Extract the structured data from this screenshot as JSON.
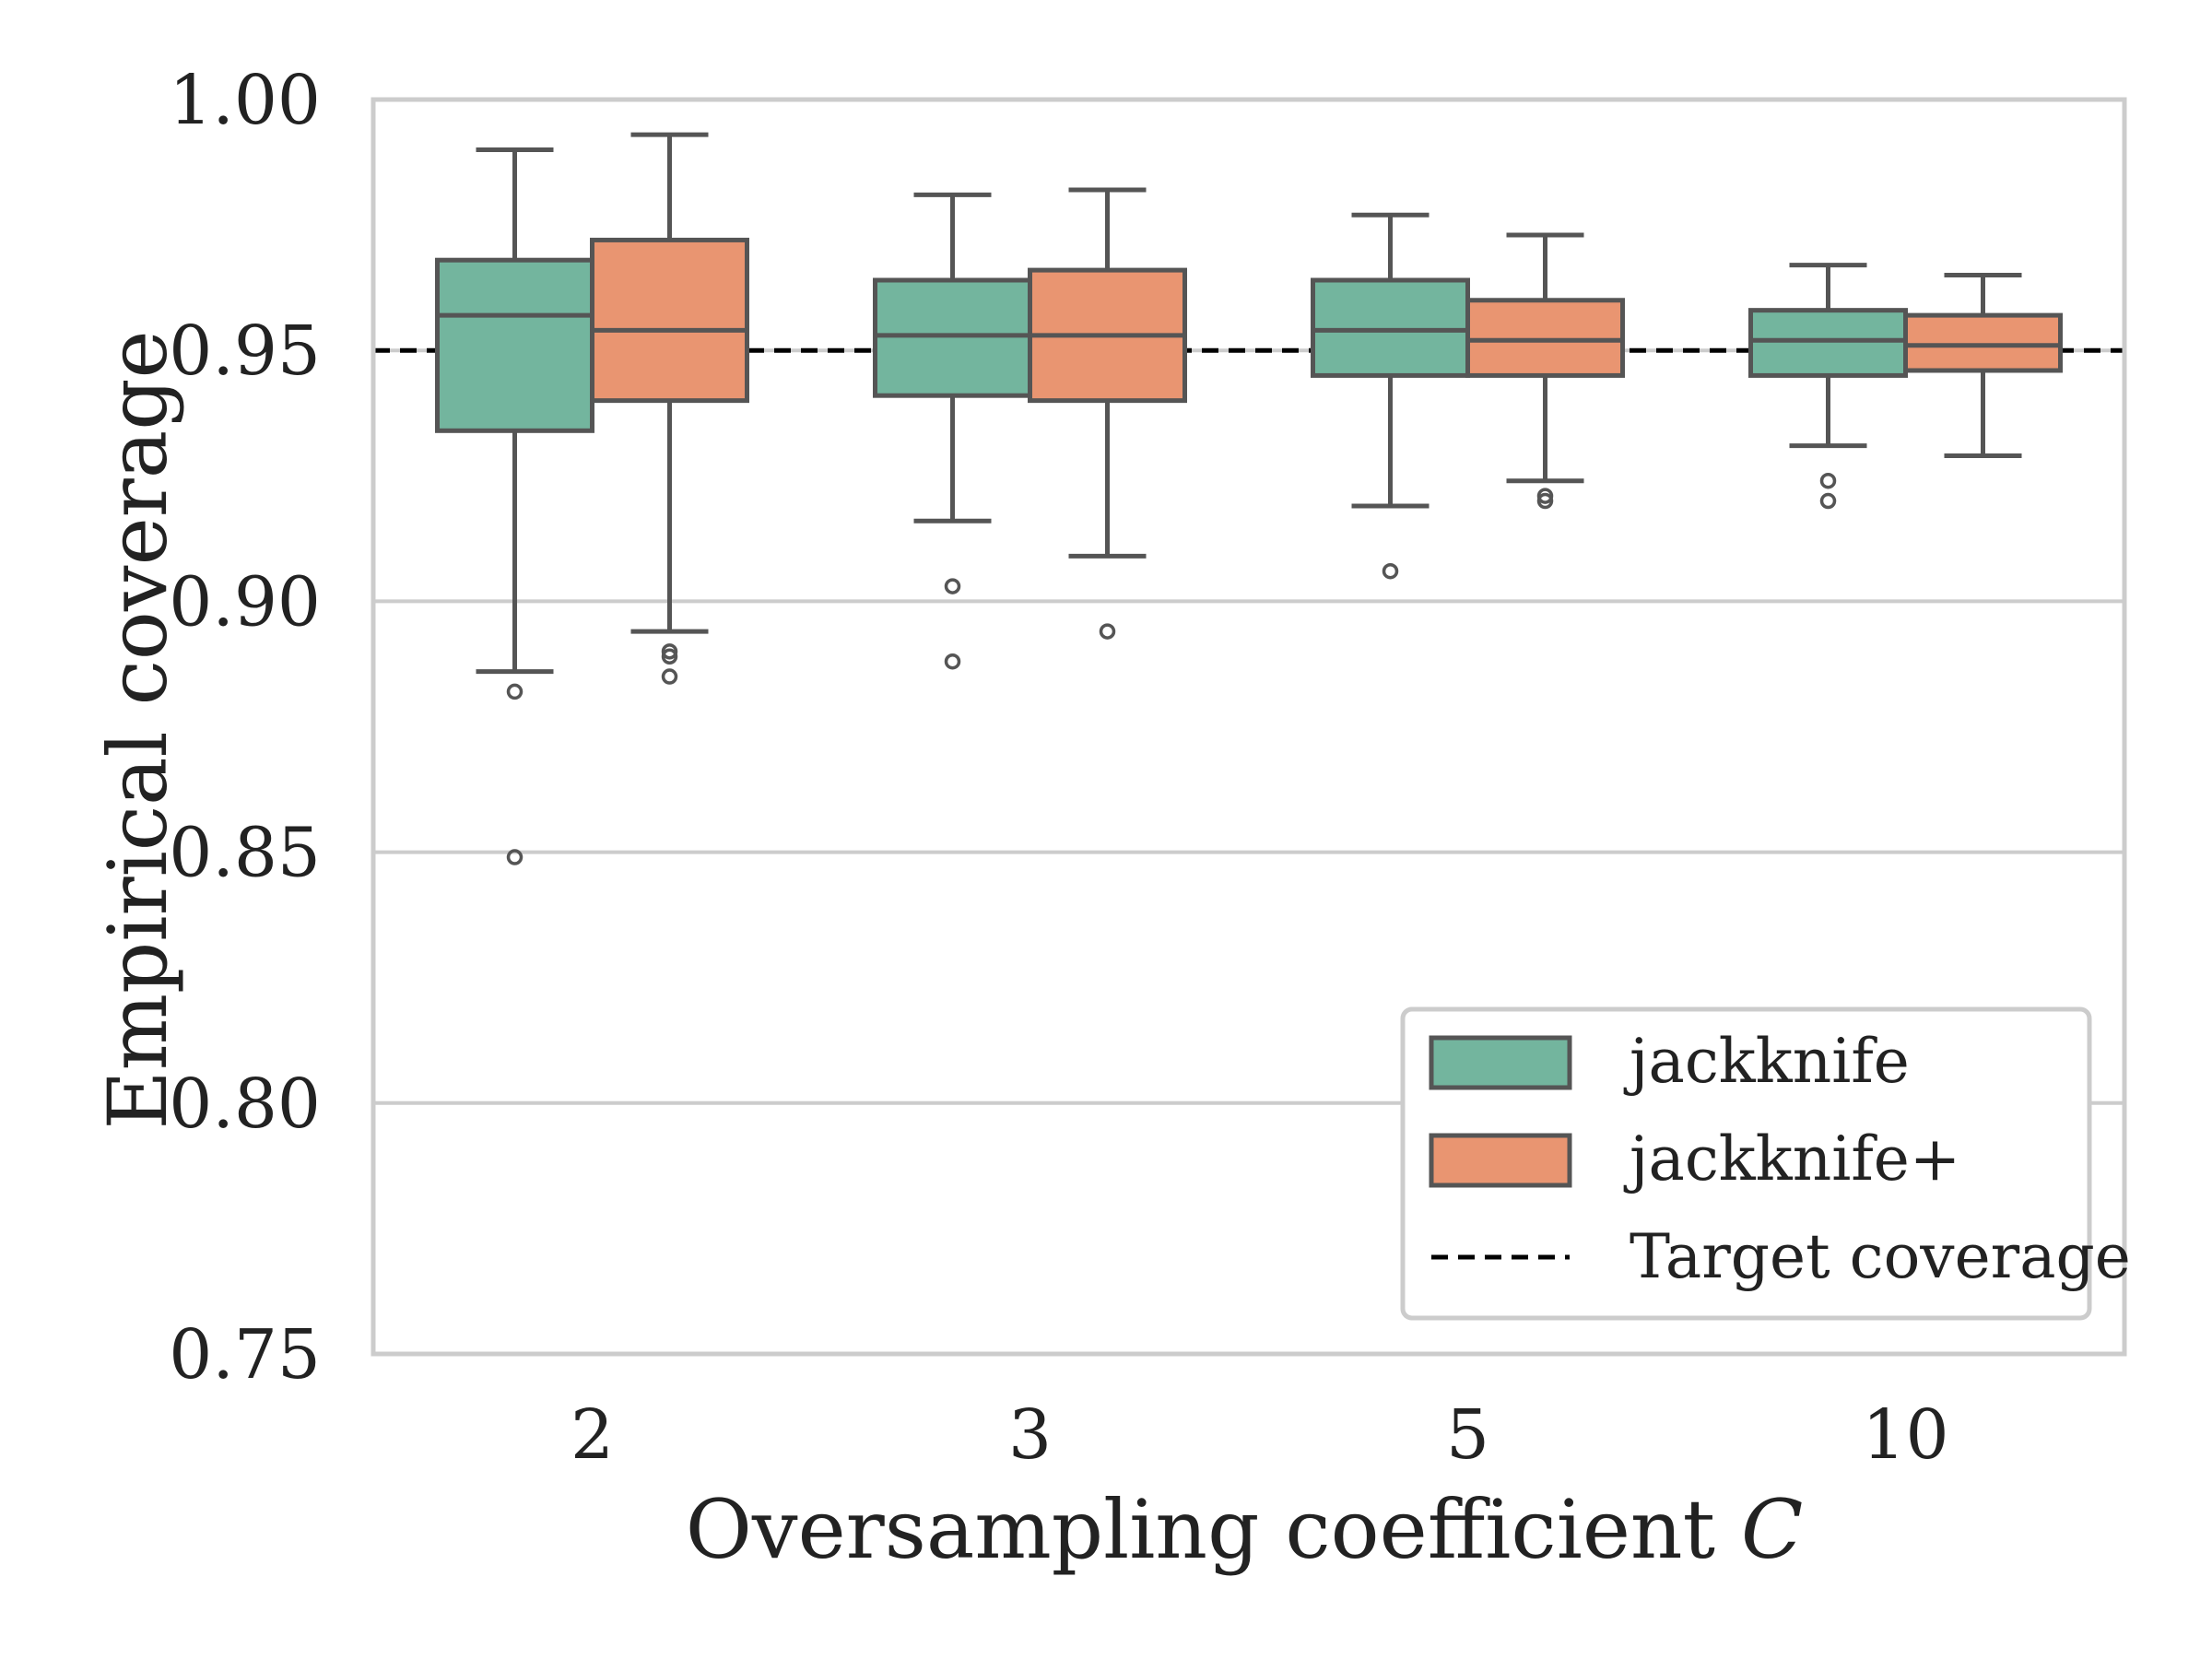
{
  "chart_data": {
    "type": "boxplot",
    "title": "",
    "xlabel": "Oversampling coefficient",
    "xlabel_symbol": "C",
    "ylabel": "Empirical coverage",
    "categories": [
      "2",
      "3",
      "5",
      "10"
    ],
    "ylim": [
      0.75,
      1.0
    ],
    "yticks": [
      "0.75",
      "0.80",
      "0.85",
      "0.90",
      "0.95",
      "1.00"
    ],
    "ytick_values": [
      0.75,
      0.8,
      0.85,
      0.9,
      0.95,
      1.0
    ],
    "grid": "horizontal",
    "target_coverage": 0.95,
    "legend_position": "lower-right",
    "series": [
      {
        "name": "jackknife",
        "color": "#73B59E",
        "boxes": [
          {
            "whisker_low": 0.886,
            "q1": 0.934,
            "median": 0.957,
            "q3": 0.968,
            "whisker_high": 0.99,
            "outliers": [
              0.882,
              0.849
            ]
          },
          {
            "whisker_low": 0.916,
            "q1": 0.941,
            "median": 0.953,
            "q3": 0.964,
            "whisker_high": 0.981,
            "outliers": [
              0.903,
              0.888
            ]
          },
          {
            "whisker_low": 0.919,
            "q1": 0.945,
            "median": 0.954,
            "q3": 0.964,
            "whisker_high": 0.977,
            "outliers": [
              0.906
            ]
          },
          {
            "whisker_low": 0.931,
            "q1": 0.945,
            "median": 0.952,
            "q3": 0.958,
            "whisker_high": 0.967,
            "outliers": [
              0.924,
              0.92
            ]
          }
        ]
      },
      {
        "name": "jackknife+",
        "color": "#E99571",
        "boxes": [
          {
            "whisker_low": 0.894,
            "q1": 0.94,
            "median": 0.954,
            "q3": 0.972,
            "whisker_high": 0.993,
            "outliers": [
              0.89,
              0.889,
              0.885
            ]
          },
          {
            "whisker_low": 0.909,
            "q1": 0.94,
            "median": 0.953,
            "q3": 0.966,
            "whisker_high": 0.982,
            "outliers": [
              0.894
            ]
          },
          {
            "whisker_low": 0.924,
            "q1": 0.945,
            "median": 0.952,
            "q3": 0.96,
            "whisker_high": 0.973,
            "outliers": [
              0.921,
              0.92
            ]
          },
          {
            "whisker_low": 0.929,
            "q1": 0.946,
            "median": 0.951,
            "q3": 0.957,
            "whisker_high": 0.965,
            "outliers": []
          }
        ]
      }
    ],
    "legend": [
      "jackknife",
      "jackknife+",
      "Target coverage"
    ],
    "colors": {
      "box_edge": "#555555",
      "grid": "#cccccc",
      "frame": "#cccccc",
      "target_line": "#000000"
    }
  }
}
